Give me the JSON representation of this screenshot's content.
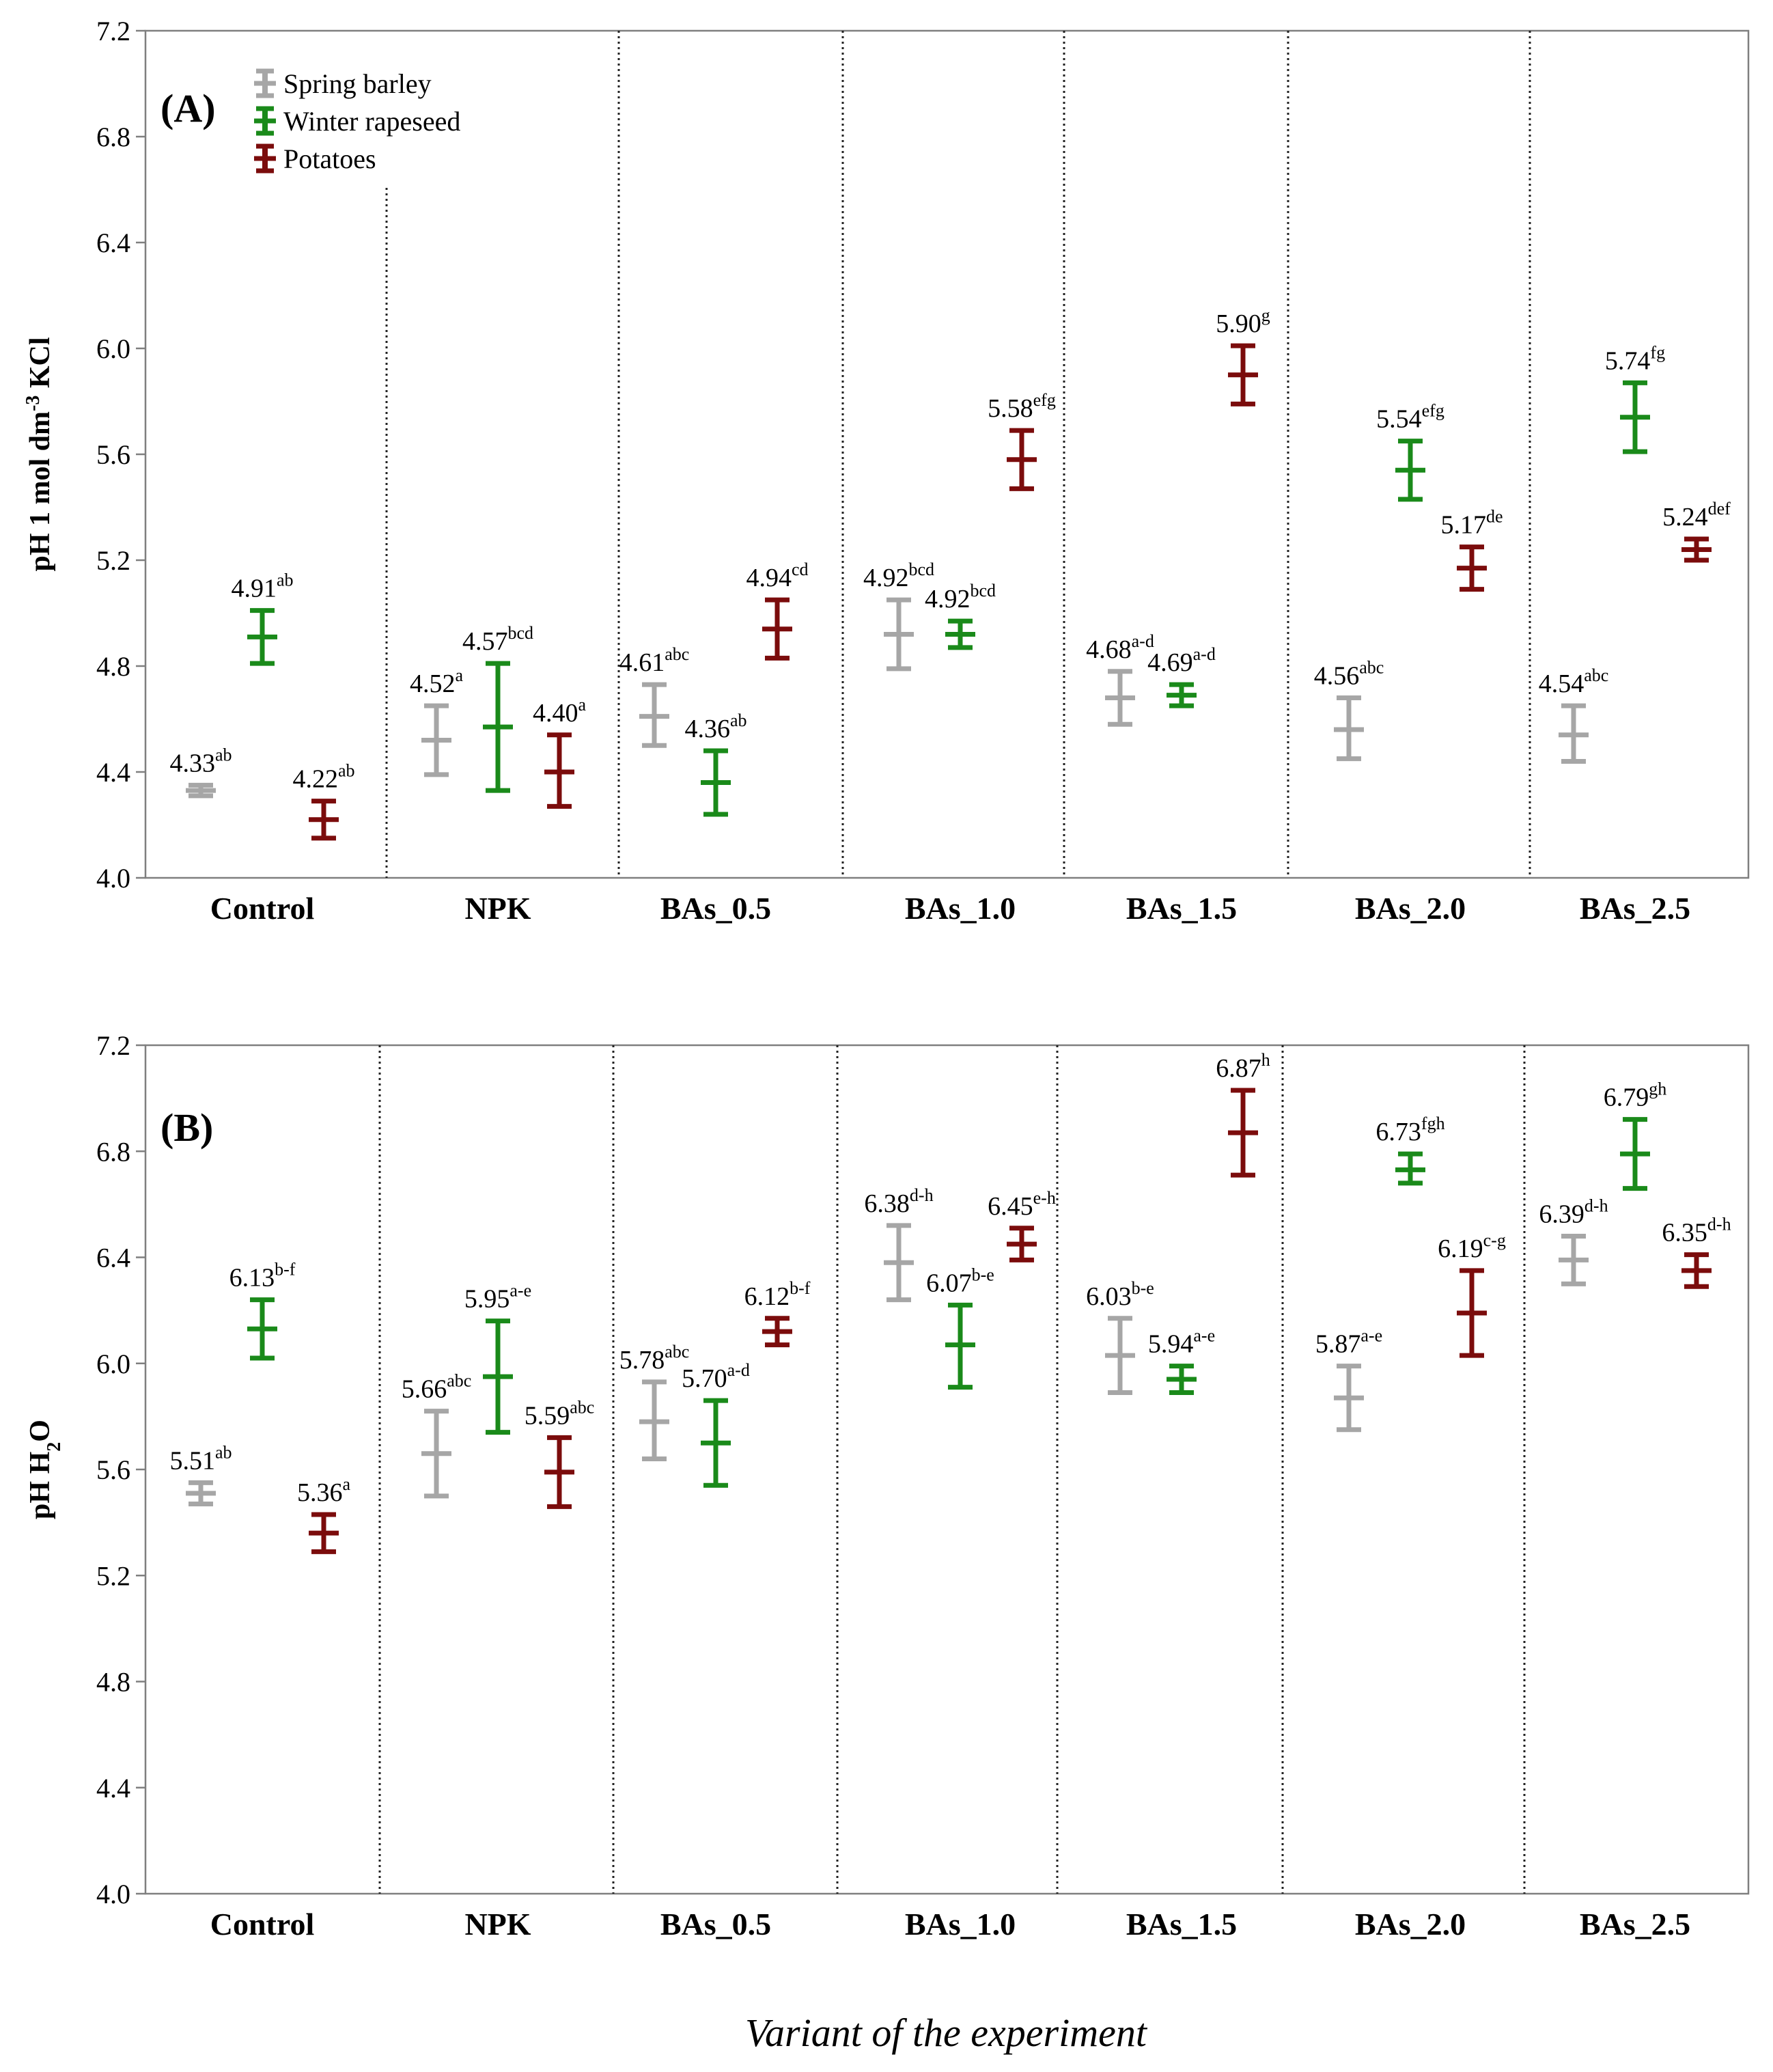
{
  "figure": {
    "xlabel": "Variant of the experiment"
  },
  "chart_data": [
    {
      "type": "errorbar",
      "panel_label": "(A)",
      "ylabel_parts": {
        "pre": "pH 1 mol dm",
        "sup": "-3",
        "post": " KCl"
      },
      "ylim": [
        4.0,
        7.2
      ],
      "yticks": [
        "4.0",
        "4.4",
        "4.8",
        "5.2",
        "5.6",
        "6.0",
        "6.4",
        "6.8",
        "7.2"
      ],
      "grid": false,
      "legend_position": "top-left",
      "categories": [
        "Control",
        "NPK",
        "BAs_0.5",
        "BAs_1.0",
        "BAs_1.5",
        "BAs_2.0",
        "BAs_2.5"
      ],
      "series": [
        {
          "name": "Spring barley",
          "color": "#a6a6a6",
          "values": [
            4.33,
            4.52,
            4.61,
            4.92,
            4.68,
            4.56,
            4.54
          ],
          "lower": [
            4.31,
            4.39,
            4.5,
            4.79,
            4.58,
            4.45,
            4.44
          ],
          "upper": [
            4.35,
            4.65,
            4.73,
            5.05,
            4.78,
            4.68,
            4.65
          ],
          "labels": [
            "4.33",
            "4.52",
            "4.61",
            "4.92",
            "4.68",
            "4.56",
            "4.54"
          ],
          "letters": [
            "ab",
            "a",
            "abc",
            "bcd",
            "a-d",
            "abc",
            "abc"
          ]
        },
        {
          "name": "Winter rapeseed",
          "color": "#1a8a1a",
          "values": [
            4.91,
            4.57,
            4.36,
            4.92,
            4.69,
            5.54,
            5.74
          ],
          "lower": [
            4.81,
            4.33,
            4.24,
            4.87,
            4.65,
            5.43,
            5.61
          ],
          "upper": [
            5.01,
            4.81,
            4.48,
            4.97,
            4.73,
            5.65,
            5.87
          ],
          "labels": [
            "4.91",
            "4.57",
            "4.36",
            "4.92",
            "4.69",
            "5.54",
            "5.74"
          ],
          "letters": [
            "ab",
            "bcd",
            "ab",
            "bcd",
            "a-d",
            "efg",
            "fg"
          ]
        },
        {
          "name": "Potatoes",
          "color": "#7b0c0c",
          "values": [
            4.22,
            4.4,
            4.94,
            5.58,
            5.9,
            5.17,
            5.24
          ],
          "lower": [
            4.15,
            4.27,
            4.83,
            5.47,
            5.79,
            5.09,
            5.2
          ],
          "upper": [
            4.29,
            4.54,
            5.05,
            5.69,
            6.01,
            5.25,
            5.28
          ],
          "labels": [
            "4.22",
            "4.40",
            "4.94",
            "5.58",
            "5.90",
            "5.17",
            "5.24"
          ],
          "letters": [
            "ab",
            "a",
            "cd",
            "efg",
            "g",
            "de",
            "def"
          ]
        }
      ]
    },
    {
      "type": "errorbar",
      "panel_label": "(B)",
      "ylabel_parts": {
        "pre": "pH H",
        "sub": "2",
        "post": "O"
      },
      "ylim": [
        4.0,
        7.2
      ],
      "yticks": [
        "4.0",
        "4.4",
        "4.8",
        "5.2",
        "5.6",
        "6.0",
        "6.4",
        "6.8",
        "7.2"
      ],
      "grid": false,
      "categories": [
        "Control",
        "NPK",
        "BAs_0.5",
        "BAs_1.0",
        "BAs_1.5",
        "BAs_2.0",
        "BAs_2.5"
      ],
      "series": [
        {
          "name": "Spring barley",
          "color": "#a6a6a6",
          "values": [
            5.51,
            5.66,
            5.78,
            6.38,
            6.03,
            5.87,
            6.39
          ],
          "lower": [
            5.47,
            5.5,
            5.64,
            6.24,
            5.89,
            5.75,
            6.3
          ],
          "upper": [
            5.55,
            5.82,
            5.93,
            6.52,
            6.17,
            5.99,
            6.48
          ],
          "labels": [
            "5.51",
            "5.66",
            "5.78",
            "6.38",
            "6.03",
            "5.87",
            "6.39"
          ],
          "letters": [
            "ab",
            "abc",
            "abc",
            "d-h",
            "b-e",
            "a-e",
            "d-h"
          ]
        },
        {
          "name": "Winter rapeseed",
          "color": "#1a8a1a",
          "values": [
            6.13,
            5.95,
            5.7,
            6.07,
            5.94,
            6.73,
            6.79
          ],
          "lower": [
            6.02,
            5.74,
            5.54,
            5.91,
            5.89,
            6.68,
            6.66
          ],
          "upper": [
            6.24,
            6.16,
            5.86,
            6.22,
            5.99,
            6.79,
            6.92
          ],
          "labels": [
            "6.13",
            "5.95",
            "5.70",
            "6.07",
            "5.94",
            "6.73",
            "6.79"
          ],
          "letters": [
            "b-f",
            "a-e",
            "a-d",
            "b-e",
            "a-e",
            "fgh",
            "gh"
          ]
        },
        {
          "name": "Potatoes",
          "color": "#7b0c0c",
          "values": [
            5.36,
            5.59,
            6.12,
            6.45,
            6.87,
            6.19,
            6.35
          ],
          "lower": [
            5.29,
            5.46,
            6.07,
            6.39,
            6.71,
            6.03,
            6.29
          ],
          "upper": [
            5.43,
            5.72,
            6.17,
            6.51,
            7.03,
            6.35,
            6.41
          ],
          "labels": [
            "5.36",
            "5.59",
            "6.12",
            "6.45",
            "6.87",
            "6.19",
            "6.35"
          ],
          "letters": [
            "a",
            "abc",
            "b-f",
            "e-h",
            "h",
            "c-g",
            "d-h"
          ]
        }
      ]
    }
  ]
}
